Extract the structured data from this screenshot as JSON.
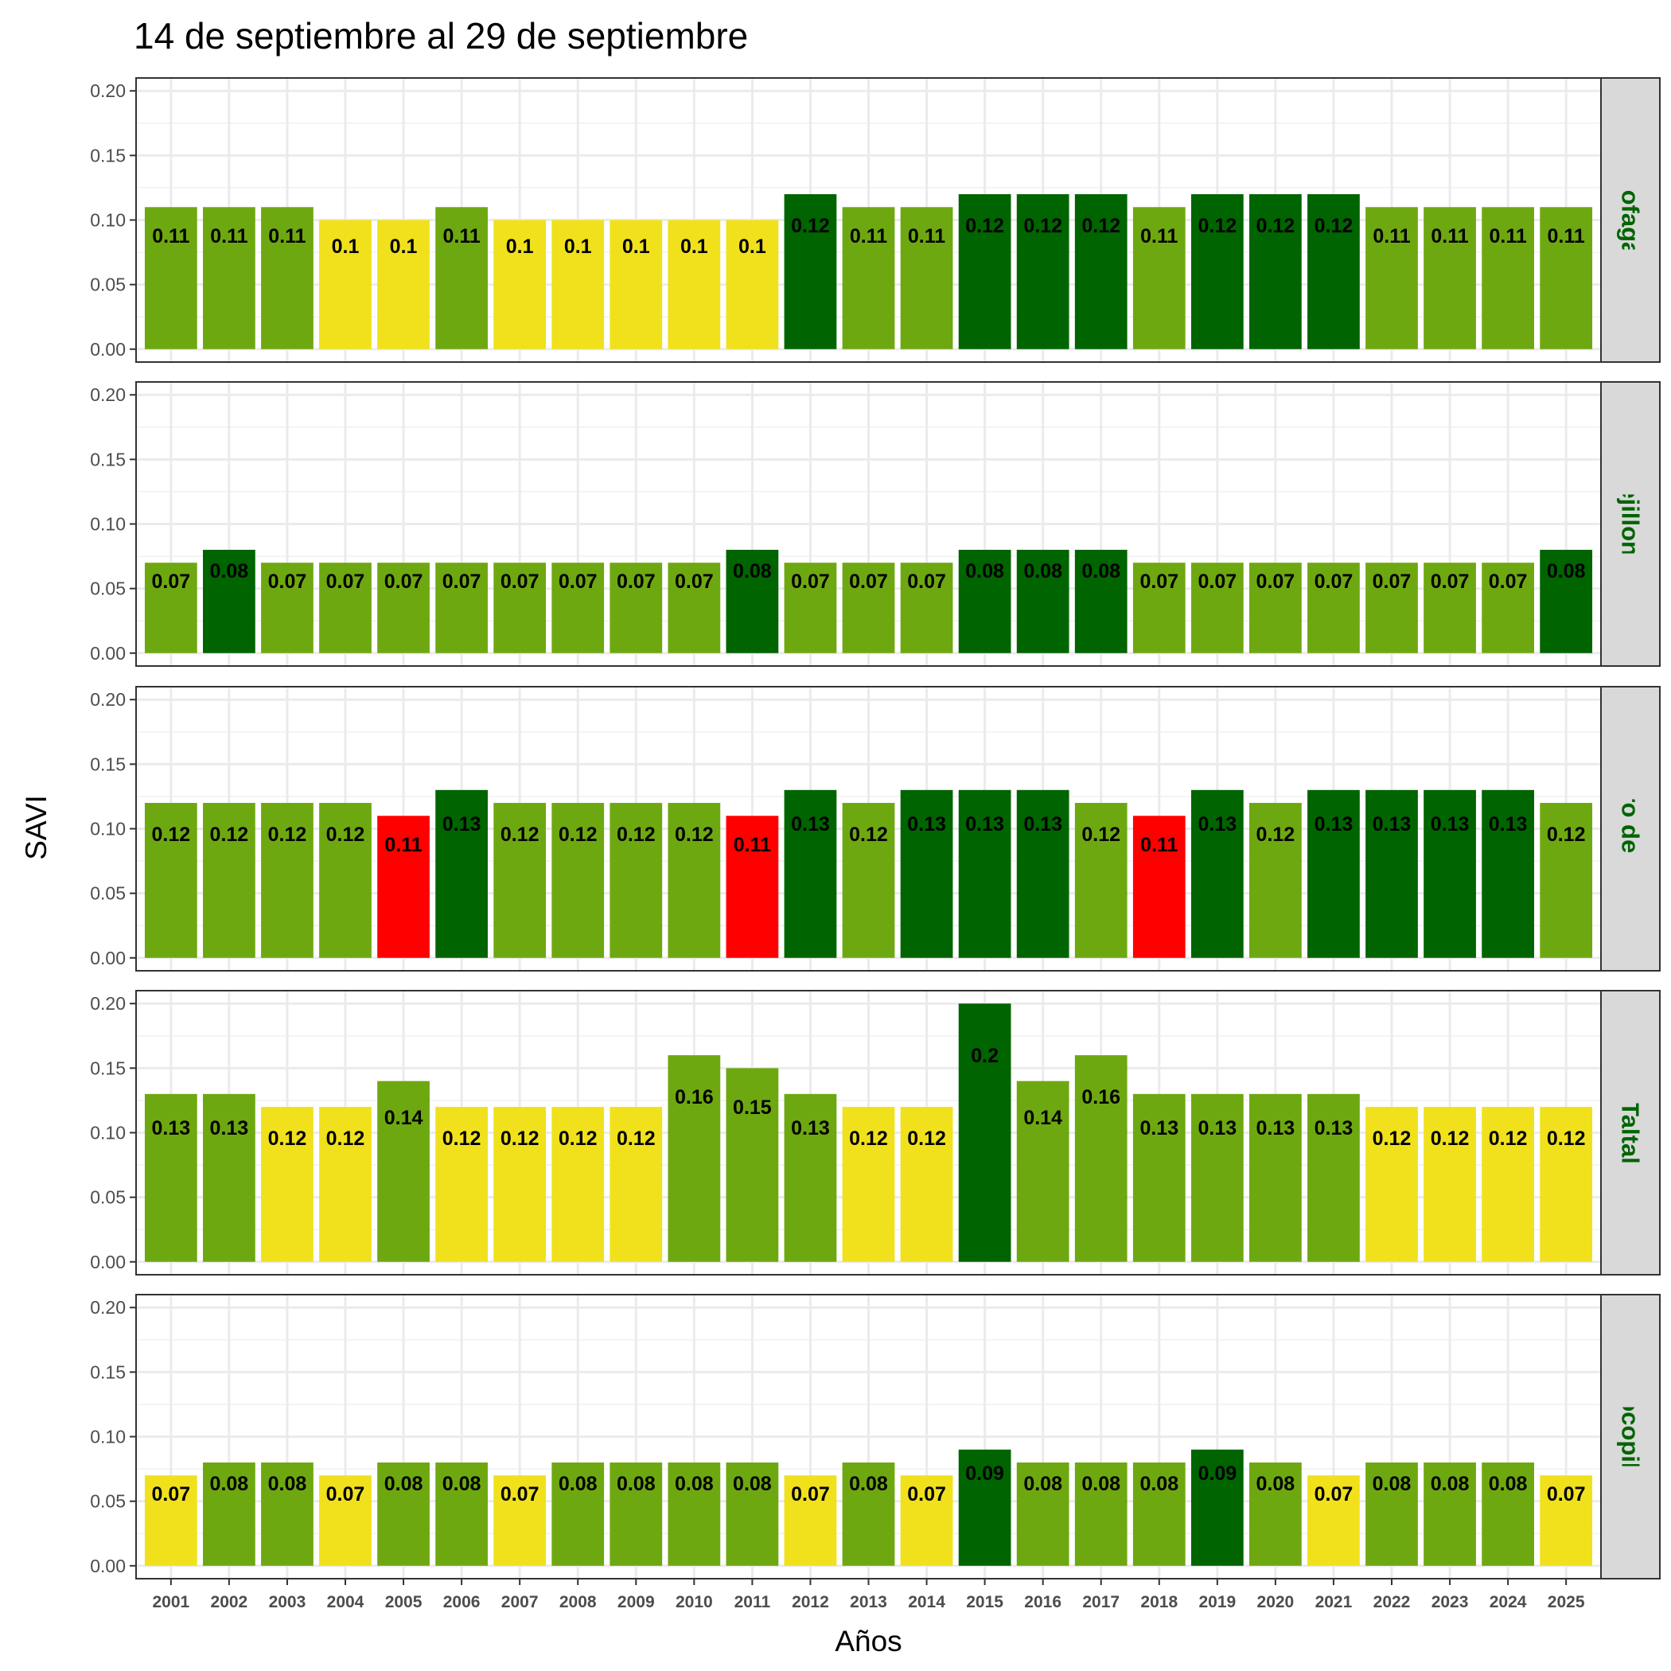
{
  "chart_data": {
    "type": "bar",
    "title": "14 de septiembre al 29 de septiembre",
    "xlabel": "Años",
    "ylabel": "SAVI",
    "ylim": [
      0,
      0.2
    ],
    "yticks": [
      "0.00",
      "0.05",
      "0.10",
      "0.15",
      "0.20"
    ],
    "grid": true,
    "categories": [
      "2001",
      "2002",
      "2003",
      "2004",
      "2005",
      "2006",
      "2007",
      "2008",
      "2009",
      "2010",
      "2011",
      "2012",
      "2013",
      "2014",
      "2015",
      "2016",
      "2017",
      "2018",
      "2019",
      "2020",
      "2021",
      "2022",
      "2023",
      "2024",
      "2025"
    ],
    "colors": {
      "Y": "#F0E11C",
      "G": "#6EA810",
      "D": "#006400",
      "R": "#FF0000"
    },
    "strip_text_color": "#006400",
    "series": [
      {
        "name": "Antofagasta",
        "values": [
          0.11,
          0.11,
          0.11,
          0.1,
          0.1,
          0.11,
          0.1,
          0.1,
          0.1,
          0.1,
          0.1,
          0.12,
          0.11,
          0.11,
          0.12,
          0.12,
          0.12,
          0.11,
          0.12,
          0.12,
          0.12,
          0.11,
          0.11,
          0.11,
          0.11
        ],
        "color_class": [
          "G",
          "G",
          "G",
          "Y",
          "Y",
          "G",
          "Y",
          "Y",
          "Y",
          "Y",
          "Y",
          "D",
          "G",
          "G",
          "D",
          "D",
          "D",
          "G",
          "D",
          "D",
          "D",
          "G",
          "G",
          "G",
          "G"
        ]
      },
      {
        "name": "Mejillones",
        "values": [
          0.07,
          0.08,
          0.07,
          0.07,
          0.07,
          0.07,
          0.07,
          0.07,
          0.07,
          0.07,
          0.08,
          0.07,
          0.07,
          0.07,
          0.08,
          0.08,
          0.08,
          0.07,
          0.07,
          0.07,
          0.07,
          0.07,
          0.07,
          0.07,
          0.08
        ],
        "color_class": [
          "G",
          "D",
          "G",
          "G",
          "G",
          "G",
          "G",
          "G",
          "G",
          "G",
          "D",
          "G",
          "G",
          "G",
          "D",
          "D",
          "D",
          "G",
          "G",
          "G",
          "G",
          "G",
          "G",
          "G",
          "D"
        ]
      },
      {
        "name": "San Pedro de Atacama",
        "values": [
          0.12,
          0.12,
          0.12,
          0.12,
          0.11,
          0.13,
          0.12,
          0.12,
          0.12,
          0.12,
          0.11,
          0.13,
          0.12,
          0.13,
          0.13,
          0.13,
          0.12,
          0.11,
          0.13,
          0.12,
          0.13,
          0.13,
          0.13,
          0.13,
          0.12
        ],
        "color_class": [
          "G",
          "G",
          "G",
          "G",
          "R",
          "D",
          "G",
          "G",
          "G",
          "G",
          "R",
          "D",
          "G",
          "D",
          "D",
          "D",
          "G",
          "R",
          "D",
          "G",
          "D",
          "D",
          "D",
          "D",
          "G"
        ]
      },
      {
        "name": "Taltal",
        "values": [
          0.13,
          0.13,
          0.12,
          0.12,
          0.14,
          0.12,
          0.12,
          0.12,
          0.12,
          0.16,
          0.15,
          0.13,
          0.12,
          0.12,
          0.2,
          0.14,
          0.16,
          0.13,
          0.13,
          0.13,
          0.13,
          0.12,
          0.12,
          0.12,
          0.12
        ],
        "color_class": [
          "G",
          "G",
          "Y",
          "Y",
          "G",
          "Y",
          "Y",
          "Y",
          "Y",
          "G",
          "G",
          "G",
          "Y",
          "Y",
          "D",
          "G",
          "G",
          "G",
          "G",
          "G",
          "G",
          "Y",
          "Y",
          "Y",
          "Y"
        ]
      },
      {
        "name": "Tocopilla",
        "values": [
          0.07,
          0.08,
          0.08,
          0.07,
          0.08,
          0.08,
          0.07,
          0.08,
          0.08,
          0.08,
          0.08,
          0.07,
          0.08,
          0.07,
          0.09,
          0.08,
          0.08,
          0.08,
          0.09,
          0.08,
          0.07,
          0.08,
          0.08,
          0.08,
          0.07
        ],
        "color_class": [
          "Y",
          "G",
          "G",
          "Y",
          "G",
          "G",
          "Y",
          "G",
          "G",
          "G",
          "G",
          "Y",
          "G",
          "Y",
          "D",
          "G",
          "G",
          "G",
          "D",
          "G",
          "Y",
          "G",
          "G",
          "G",
          "Y"
        ]
      }
    ]
  }
}
